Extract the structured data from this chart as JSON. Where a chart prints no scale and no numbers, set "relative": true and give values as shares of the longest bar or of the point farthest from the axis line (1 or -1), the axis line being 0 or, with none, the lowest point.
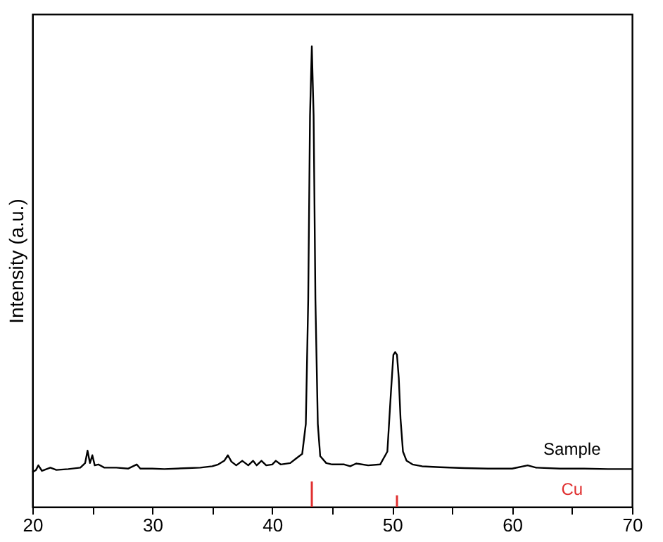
{
  "chart_data": {
    "type": "line",
    "relative": true,
    "ylabel": "Intensity (a.u.)",
    "xlim": [
      20,
      70
    ],
    "xticks": [
      20,
      {
        "value": 25,
        "label": null
      },
      30,
      {
        "value": 35,
        "label": null
      },
      40,
      {
        "value": 45,
        "label": null
      },
      50,
      {
        "value": 55,
        "label": null
      },
      60,
      {
        "value": 65,
        "label": null
      },
      70
    ],
    "grid": false,
    "marker": "none",
    "line_style": "solid",
    "series": [
      {
        "name": "Sample",
        "color": "#000000",
        "x": [
          20.0,
          20.3,
          20.5,
          20.8,
          21.5,
          22,
          23,
          24,
          24.4,
          24.6,
          24.8,
          25.0,
          25.2,
          25.5,
          26,
          27,
          28,
          28.7,
          29,
          30,
          31,
          32,
          33,
          34,
          35,
          35.5,
          36.0,
          36.3,
          36.6,
          37,
          37.5,
          38,
          38.4,
          38.7,
          39.1,
          39.5,
          40,
          40.3,
          40.7,
          41.5,
          42,
          42.5,
          42.8,
          43.0,
          43.15,
          43.3,
          43.45,
          43.6,
          43.8,
          44.0,
          44.5,
          45,
          46,
          46.5,
          47,
          48,
          49,
          49.6,
          49.9,
          50.1,
          50.25,
          50.4,
          50.55,
          50.7,
          50.9,
          51.2,
          51.7,
          52.5,
          54,
          56,
          58,
          60,
          61.3,
          62,
          64,
          66,
          68,
          70
        ],
        "values": [
          0.075,
          0.08,
          0.09,
          0.078,
          0.085,
          0.08,
          0.082,
          0.085,
          0.095,
          0.122,
          0.095,
          0.112,
          0.09,
          0.092,
          0.085,
          0.085,
          0.083,
          0.092,
          0.083,
          0.083,
          0.082,
          0.083,
          0.084,
          0.085,
          0.088,
          0.092,
          0.1,
          0.112,
          0.098,
          0.09,
          0.1,
          0.09,
          0.1,
          0.09,
          0.1,
          0.09,
          0.092,
          0.1,
          0.092,
          0.095,
          0.105,
          0.115,
          0.18,
          0.45,
          0.85,
          1.0,
          0.85,
          0.45,
          0.18,
          0.11,
          0.095,
          0.092,
          0.092,
          0.088,
          0.094,
          0.09,
          0.092,
          0.12,
          0.25,
          0.33,
          0.336,
          0.33,
          0.28,
          0.19,
          0.12,
          0.1,
          0.092,
          0.088,
          0.086,
          0.084,
          0.083,
          0.083,
          0.09,
          0.085,
          0.083,
          0.083,
          0.082,
          0.082
        ]
      },
      {
        "name": "Cu",
        "color": "#e03030",
        "type": "bar",
        "x": [
          43.3,
          50.4
        ],
        "values": [
          0.055,
          0.025
        ]
      }
    ]
  }
}
